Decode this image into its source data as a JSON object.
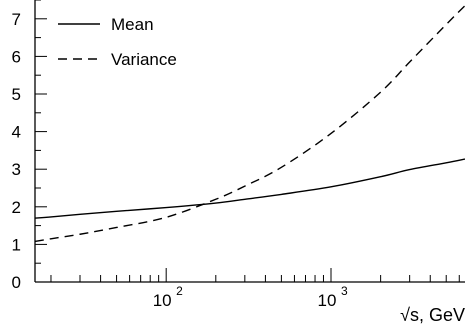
{
  "chart_data": {
    "type": "line",
    "xscale": "log",
    "xlim": [
      16,
      6500
    ],
    "ylim": [
      0,
      7.5
    ],
    "xlabel": "√s, GeV",
    "ylabel": "",
    "x_ticks": [
      {
        "value": 100,
        "base": "10",
        "exp": "2"
      },
      {
        "value": 1000,
        "base": "10",
        "exp": "3"
      }
    ],
    "y_ticks": [
      "0",
      "1",
      "2",
      "3",
      "4",
      "5",
      "6",
      "7"
    ],
    "legend": {
      "position": "top-left"
    },
    "series": [
      {
        "name": "Mean",
        "style": "solid",
        "x": [
          16,
          20,
          30,
          50,
          100,
          200,
          300,
          500,
          1000,
          2000,
          3000,
          5000,
          6500
        ],
        "values": [
          1.7,
          1.73,
          1.8,
          1.88,
          1.98,
          2.1,
          2.2,
          2.33,
          2.53,
          2.8,
          2.99,
          3.17,
          3.27
        ]
      },
      {
        "name": "Variance",
        "style": "dashed",
        "x": [
          16,
          20,
          30,
          50,
          100,
          200,
          300,
          500,
          1000,
          2000,
          3000,
          5000,
          6500
        ],
        "values": [
          1.08,
          1.15,
          1.27,
          1.45,
          1.72,
          2.2,
          2.55,
          3.05,
          3.95,
          5.05,
          5.85,
          6.85,
          7.35
        ]
      }
    ]
  }
}
